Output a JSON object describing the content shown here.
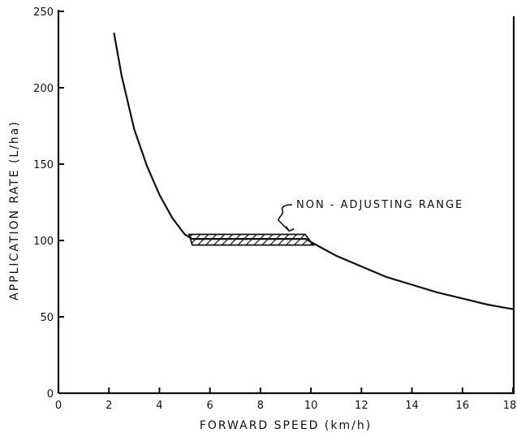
{
  "chart_data": {
    "type": "line",
    "title": "",
    "xlabel": "FORWARD SPEED (km/h)",
    "ylabel": "APPLICATION RATE (L/ha)",
    "xlim": [
      0,
      18
    ],
    "ylim": [
      0,
      250
    ],
    "x_ticks": [
      0,
      2,
      4,
      6,
      8,
      10,
      12,
      14,
      16,
      18
    ],
    "x_tick_labels": [
      "0",
      "2",
      "4",
      "6",
      "8",
      "10",
      "12",
      "14",
      "16",
      "18"
    ],
    "y_ticks": [
      0,
      50,
      100,
      150,
      200,
      250
    ],
    "y_tick_labels": [
      "0",
      "50",
      "100",
      "150",
      "200",
      "250"
    ],
    "grid": false,
    "legend": "none",
    "series": [
      {
        "values_note": "",
        "x": [
          2.2,
          2.5,
          3.0,
          3.5,
          4.0,
          4.5,
          5.0,
          5.3,
          9.8,
          10.0,
          11.0,
          12.0,
          13.0,
          14.0,
          15.0,
          16.0,
          17.0,
          18.0
        ],
        "y": [
          236,
          208,
          173,
          149,
          130,
          115,
          104,
          101,
          101,
          99,
          90,
          83,
          76,
          71,
          66,
          62,
          58,
          55
        ]
      }
    ],
    "band": {
      "x": [
        5.3,
        9.9
      ],
      "y": [
        97,
        104
      ]
    },
    "annotations": [
      {
        "text": "NON - ADJUSTING RANGE",
        "x": 9.3,
        "y": 104
      }
    ]
  }
}
